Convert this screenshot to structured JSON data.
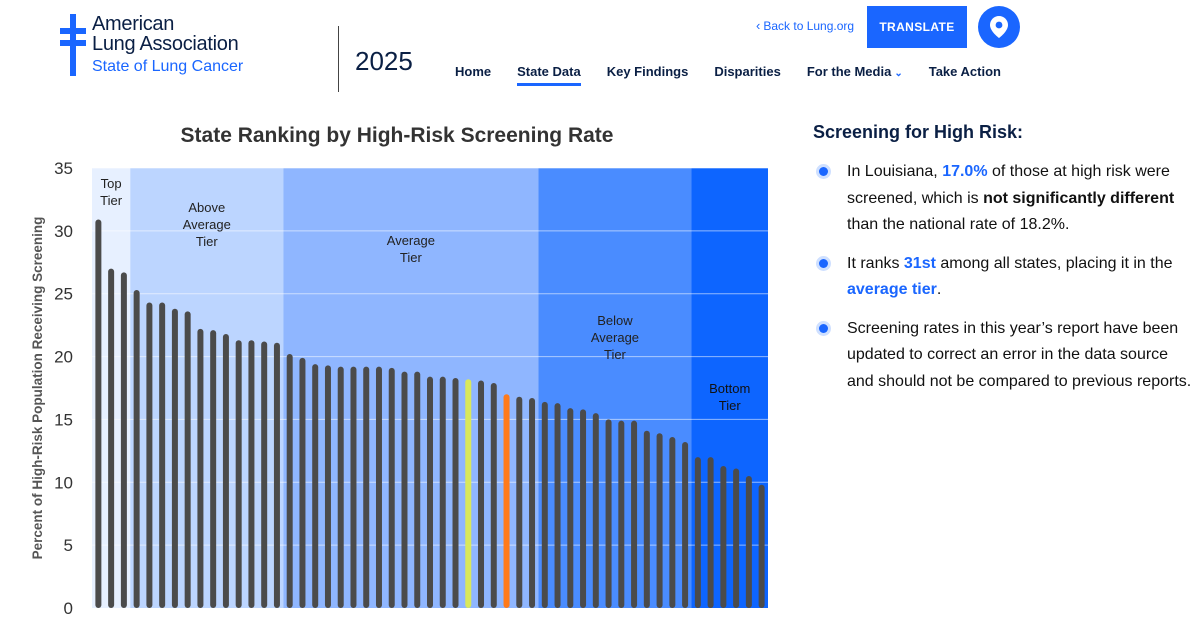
{
  "header": {
    "logo_line1": "American",
    "logo_line2": "Lung Association",
    "logo_line3": "State of Lung Cancer",
    "year": "2025",
    "back_link": "Back to Lung.org",
    "translate": "TRANSLATE",
    "location_icon": "location-pin-icon"
  },
  "nav": {
    "items": [
      "Home",
      "State Data",
      "Key Findings",
      "Disparities",
      "For the Media",
      "Take Action"
    ],
    "active": "State Data"
  },
  "colors": {
    "brand": "#1a66ff",
    "bar_default": "#4b4b4b",
    "bar_highlight_orange": "#ff7a1a",
    "bar_highlight_yellow": "#d9e85c",
    "tier_top": "#e7f0ff",
    "tier_above": "#bcd5ff",
    "tier_average": "#8fb6ff",
    "tier_below": "#4a8cff",
    "tier_bottom": "#0d65ff"
  },
  "info": {
    "heading": "Screening for High Risk:",
    "bullet1": {
      "p1": "In Louisiana, ",
      "value": "17.0%",
      "p2": " of those at high risk were screened, which is ",
      "bold": "not significantly different",
      "p3": " than the national rate of 18.2%."
    },
    "bullet2": {
      "p1": "It ranks ",
      "rank": "31st",
      "p2": " among all states, placing it in the ",
      "tier": "average tier",
      "p3": "."
    },
    "bullet3": "Screening rates in this year’s report have been updated to correct an error in the data source and should not be compared to previous reports."
  },
  "chart_data": {
    "type": "bar",
    "title": "State Ranking by High-Risk Screening Rate",
    "ylabel": "Percent of High-Risk Population Receiving Screening",
    "xlabel": "",
    "ylim": [
      0,
      35
    ],
    "yticks": [
      0,
      5,
      10,
      15,
      20,
      25,
      30,
      35
    ],
    "values": [
      30.9,
      27.0,
      26.7,
      25.3,
      24.3,
      24.3,
      23.8,
      23.6,
      22.2,
      22.1,
      21.8,
      21.3,
      21.3,
      21.2,
      21.1,
      20.2,
      19.9,
      19.4,
      19.3,
      19.2,
      19.2,
      19.2,
      19.2,
      19.1,
      18.8,
      18.8,
      18.4,
      18.4,
      18.3,
      18.2,
      18.1,
      17.9,
      17.0,
      16.8,
      16.7,
      16.4,
      16.3,
      15.9,
      15.8,
      15.5,
      15.0,
      14.9,
      14.9,
      14.1,
      13.9,
      13.6,
      13.2,
      12.0,
      12.0,
      11.3,
      11.1,
      10.5,
      9.8
    ],
    "highlight_yellow_index": 29,
    "highlight_orange_index": 32,
    "tiers": [
      {
        "label": "Top Tier",
        "start": 0,
        "end": 2
      },
      {
        "label": "Above Average Tier",
        "start": 3,
        "end": 14
      },
      {
        "label": "Average Tier",
        "start": 15,
        "end": 34
      },
      {
        "label": "Below Average Tier",
        "start": 35,
        "end": 46
      },
      {
        "label": "Bottom Tier",
        "start": 47,
        "end": 52
      }
    ]
  }
}
